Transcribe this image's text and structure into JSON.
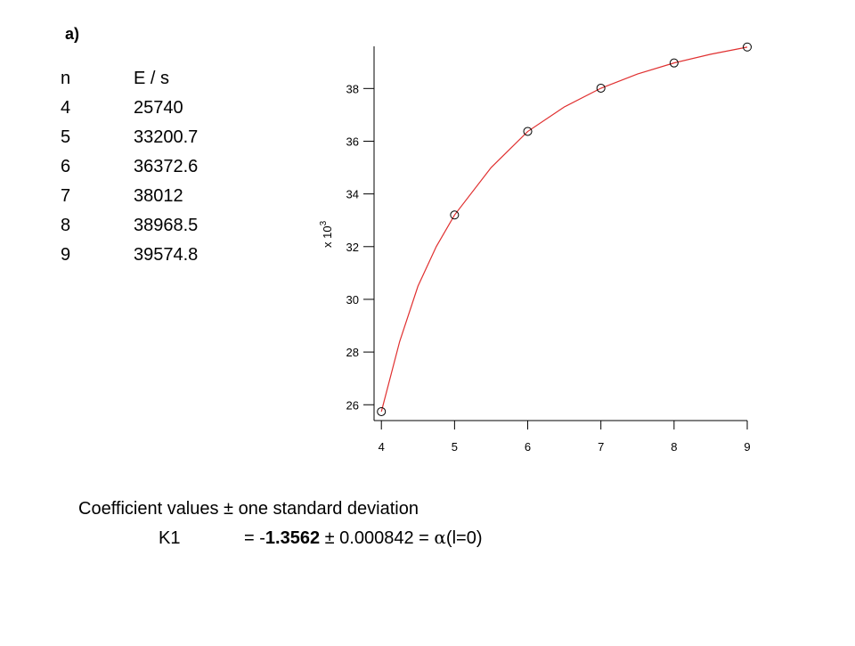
{
  "header": {
    "title": "a)"
  },
  "table": {
    "header": [
      "n",
      "E / s"
    ],
    "rows": [
      [
        "4",
        "25740"
      ],
      [
        "5",
        "33200.7"
      ],
      [
        "6",
        "36372.6"
      ],
      [
        "7",
        "38012"
      ],
      [
        "8",
        "38968.5"
      ],
      [
        "9",
        "39574.8"
      ]
    ]
  },
  "chart_data": {
    "type": "scatter",
    "y_multiplier": {
      "base": "x 10",
      "exponent": "3"
    },
    "x": [
      4,
      5,
      6,
      7,
      8,
      9
    ],
    "values": [
      25.74,
      33.2007,
      36.3726,
      38.012,
      38.9685,
      39.5748
    ],
    "marker_color": "#000000",
    "fit": {
      "color": "#e03030",
      "x": [
        4,
        4.25,
        4.5,
        4.75,
        5,
        5.5,
        6,
        6.5,
        7,
        7.5,
        8,
        8.5,
        9
      ],
      "values": [
        25.74,
        28.4,
        30.5,
        32.0,
        33.2,
        35.0,
        36.37,
        37.3,
        38.01,
        38.55,
        38.97,
        39.3,
        39.57
      ]
    },
    "xlim": [
      3.9,
      9
    ],
    "ylim": [
      25.4,
      39.6
    ],
    "xticks": [
      4,
      5,
      6,
      7,
      8,
      9
    ],
    "yticks": [
      26,
      28,
      30,
      32,
      34,
      36,
      38
    ]
  },
  "footer": {
    "heading": "Coefficient values ± one standard deviation",
    "name": "K1",
    "prefix": "= -",
    "value": "1.3562",
    "middle": " ± 0.000842 = ",
    "symbol": "α",
    "suffix": "(l=0)"
  }
}
